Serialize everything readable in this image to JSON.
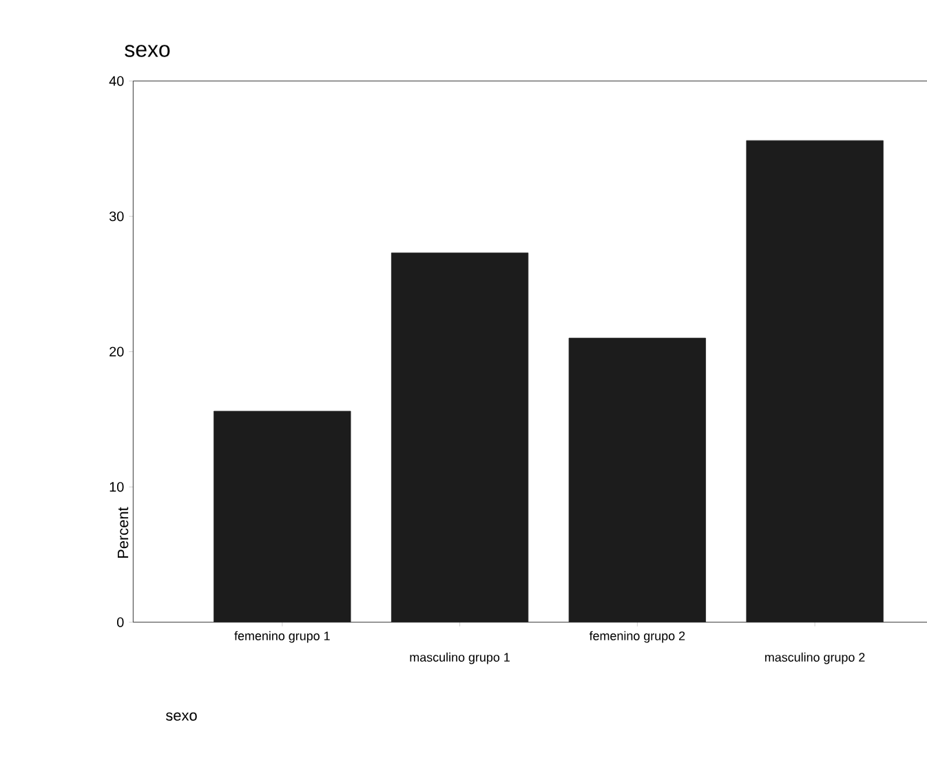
{
  "chart_data": {
    "type": "bar",
    "title": "sexo",
    "xlabel": "sexo",
    "ylabel": "Percent",
    "categories": [
      "femenino grupo 1",
      "masculino grupo 1",
      "femenino grupo 2",
      "masculino grupo 2"
    ],
    "values": [
      15.6,
      27.3,
      21.0,
      35.6
    ],
    "color": "#1c1c1c",
    "ylim": [
      0,
      40
    ],
    "yticks": [
      0,
      10,
      20,
      30,
      40
    ],
    "grid": false
  }
}
